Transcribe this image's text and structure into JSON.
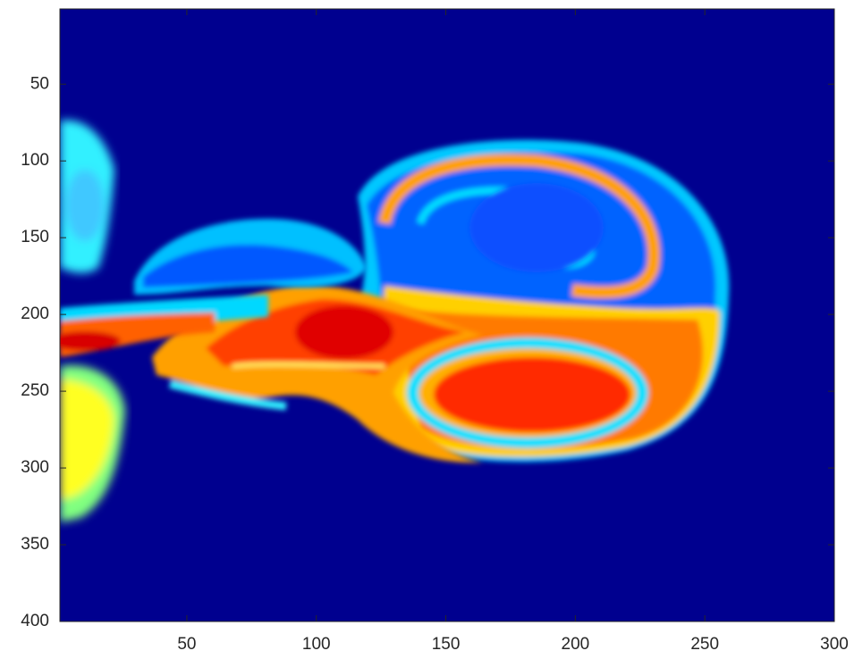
{
  "chart_data": {
    "type": "image",
    "xlim": [
      1,
      300
    ],
    "ylim": [
      1,
      400
    ],
    "y_reversed": true,
    "xticks": [
      50,
      100,
      150,
      200,
      250,
      300
    ],
    "yticks": [
      50,
      100,
      150,
      200,
      250,
      300,
      350,
      400
    ]
  }
}
